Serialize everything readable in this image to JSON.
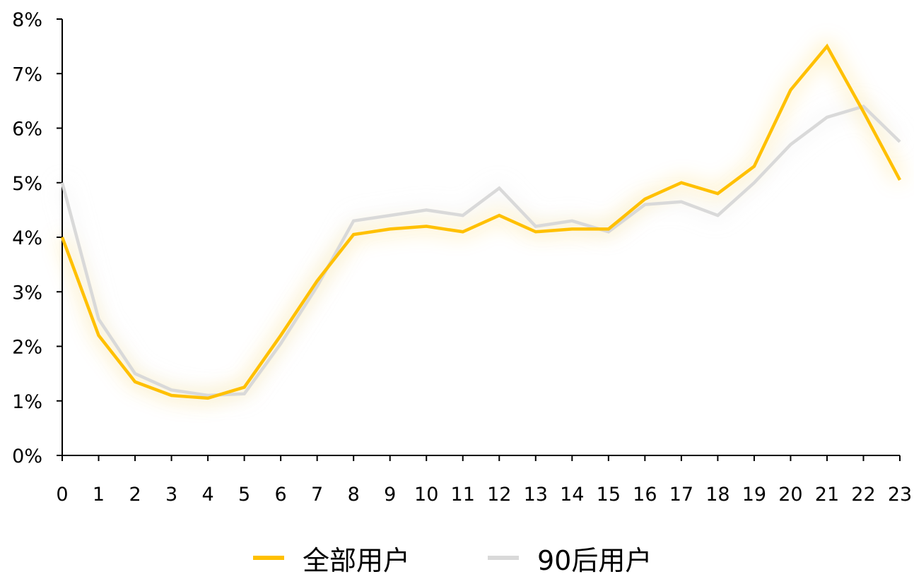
{
  "colors": {
    "series_all": "#FFC000",
    "series_90s": "#D9D9D9",
    "axis": "#000000"
  },
  "chart_data": {
    "type": "line",
    "x": [
      "0",
      "1",
      "2",
      "3",
      "4",
      "5",
      "6",
      "7",
      "8",
      "9",
      "10",
      "11",
      "12",
      "13",
      "14",
      "15",
      "16",
      "17",
      "18",
      "19",
      "20",
      "21",
      "22",
      "23"
    ],
    "y_ticks": [
      "0%",
      "1%",
      "2%",
      "3%",
      "4%",
      "5%",
      "6%",
      "7%",
      "8%"
    ],
    "ylim": [
      0,
      8
    ],
    "y_unit": "%",
    "grid": false,
    "legend_position": "bottom",
    "series": [
      {
        "name": "全部用户",
        "color": "#FFC000",
        "values": [
          4.0,
          2.2,
          1.35,
          1.1,
          1.05,
          1.25,
          2.2,
          3.2,
          4.05,
          4.15,
          4.2,
          4.1,
          4.4,
          4.1,
          4.15,
          4.15,
          4.7,
          5.0,
          4.8,
          5.3,
          6.7,
          7.5,
          6.3,
          5.05
        ]
      },
      {
        "name": "90后用户",
        "color": "#D9D9D9",
        "values": [
          5.0,
          2.5,
          1.5,
          1.2,
          1.1,
          1.13,
          2.05,
          3.1,
          4.3,
          4.4,
          4.5,
          4.4,
          4.9,
          4.2,
          4.3,
          4.1,
          4.6,
          4.65,
          4.4,
          5.0,
          5.7,
          6.2,
          6.4,
          5.75
        ]
      }
    ]
  }
}
